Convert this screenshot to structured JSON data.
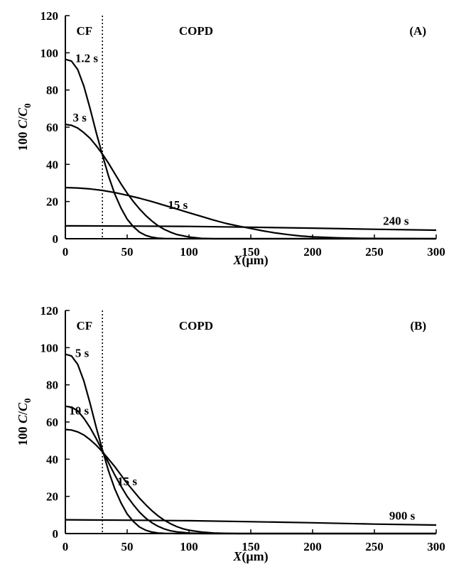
{
  "chart_data": [
    {
      "type": "line",
      "panel_label": "(A)",
      "xlabel_var": "X",
      "xlabel_unit": "(μm)",
      "ylabel_prefix": "100 ",
      "ylabel_c": "C",
      "ylabel_slash": "/",
      "ylabel_c0": "C",
      "ylabel_sub": "0",
      "xlim": [
        0,
        300
      ],
      "ylim": [
        0,
        120
      ],
      "xticks": [
        0,
        50,
        100,
        150,
        200,
        250,
        300
      ],
      "yticks": [
        0,
        20,
        40,
        60,
        80,
        100,
        120
      ],
      "grid": false,
      "boundary_x": 30,
      "region_labels": [
        {
          "text": "CF",
          "x": 2,
          "y": 112
        },
        {
          "text": "COPD",
          "x": 85,
          "y": 112
        }
      ],
      "series": [
        {
          "name": "1.2 s",
          "label_at": {
            "x": 8,
            "y": 95
          },
          "points": [
            [
              0,
              96.5
            ],
            [
              5,
              95.5
            ],
            [
              10,
              91
            ],
            [
              15,
              82
            ],
            [
              20,
              70
            ],
            [
              25,
              57
            ],
            [
              30,
              45
            ],
            [
              35,
              33.5
            ],
            [
              40,
              24
            ],
            [
              45,
              16.5
            ],
            [
              50,
              10.5
            ],
            [
              55,
              6.5
            ],
            [
              60,
              3.5
            ],
            [
              65,
              1.8
            ],
            [
              70,
              0.8
            ],
            [
              75,
              0.3
            ],
            [
              80,
              0.1
            ],
            [
              90,
              0
            ],
            [
              300,
              0
            ]
          ]
        },
        {
          "name": "3 s",
          "label_at": {
            "x": 6,
            "y": 63
          },
          "points": [
            [
              0,
              61.5
            ],
            [
              5,
              61
            ],
            [
              10,
              59.5
            ],
            [
              15,
              57
            ],
            [
              20,
              54
            ],
            [
              25,
              50
            ],
            [
              30,
              45.5
            ],
            [
              35,
              40.5
            ],
            [
              40,
              35
            ],
            [
              45,
              29.5
            ],
            [
              50,
              24.5
            ],
            [
              55,
              20
            ],
            [
              60,
              16
            ],
            [
              65,
              12.5
            ],
            [
              70,
              9.5
            ],
            [
              75,
              7
            ],
            [
              80,
              5
            ],
            [
              85,
              3.5
            ],
            [
              90,
              2.3
            ],
            [
              100,
              0.9
            ],
            [
              110,
              0.2
            ],
            [
              120,
              0
            ],
            [
              300,
              0
            ]
          ]
        },
        {
          "name": "15 s",
          "label_at": {
            "x": 83,
            "y": 16
          },
          "points": [
            [
              0,
              27.5
            ],
            [
              10,
              27.3
            ],
            [
              20,
              26.8
            ],
            [
              30,
              26
            ],
            [
              40,
              24.8
            ],
            [
              50,
              23.4
            ],
            [
              60,
              21.8
            ],
            [
              70,
              20
            ],
            [
              80,
              18
            ],
            [
              90,
              16
            ],
            [
              100,
              14
            ],
            [
              110,
              12
            ],
            [
              120,
              10
            ],
            [
              130,
              8.2
            ],
            [
              140,
              6.8
            ],
            [
              150,
              5.5
            ],
            [
              160,
              4.2
            ],
            [
              170,
              3.1
            ],
            [
              180,
              2.2
            ],
            [
              190,
              1.5
            ],
            [
              200,
              1
            ],
            [
              220,
              0.5
            ],
            [
              240,
              0.2
            ],
            [
              260,
              0.1
            ],
            [
              300,
              0
            ]
          ]
        },
        {
          "name": "240 s",
          "label_at": {
            "x": 257,
            "y": 7.5
          },
          "points": [
            [
              0,
              6.9
            ],
            [
              50,
              6.8
            ],
            [
              100,
              6.6
            ],
            [
              150,
              6.2
            ],
            [
              200,
              5.7
            ],
            [
              250,
              5.1
            ],
            [
              300,
              4.6
            ]
          ]
        }
      ]
    },
    {
      "type": "line",
      "panel_label": "(B)",
      "xlabel_var": "X",
      "xlabel_unit": "(μm)",
      "ylabel_prefix": "100 ",
      "ylabel_c": "C",
      "ylabel_slash": "/",
      "ylabel_c0": "C",
      "ylabel_sub": "0",
      "xlim": [
        0,
        300
      ],
      "ylim": [
        0,
        120
      ],
      "xticks": [
        0,
        50,
        100,
        150,
        200,
        250,
        300
      ],
      "yticks": [
        0,
        20,
        40,
        60,
        80,
        100,
        120
      ],
      "grid": false,
      "boundary_x": 30,
      "region_labels": [
        {
          "text": "CF",
          "x": 2,
          "y": 112
        },
        {
          "text": "COPD",
          "x": 85,
          "y": 112
        }
      ],
      "series": [
        {
          "name": "5 s",
          "label_at": {
            "x": 8,
            "y": 95
          },
          "points": [
            [
              0,
              96.5
            ],
            [
              5,
              95.5
            ],
            [
              10,
              91
            ],
            [
              15,
              82
            ],
            [
              20,
              70
            ],
            [
              25,
              57
            ],
            [
              30,
              45
            ],
            [
              35,
              33.5
            ],
            [
              40,
              24
            ],
            [
              45,
              16.5
            ],
            [
              50,
              10.5
            ],
            [
              55,
              6.5
            ],
            [
              60,
              3.5
            ],
            [
              65,
              1.8
            ],
            [
              70,
              0.8
            ],
            [
              75,
              0.3
            ],
            [
              80,
              0.1
            ],
            [
              90,
              0
            ],
            [
              300,
              0
            ]
          ]
        },
        {
          "name": "10 s",
          "label_at": {
            "x": 3,
            "y": 64
          },
          "points": [
            [
              0,
              68.5
            ],
            [
              5,
              68
            ],
            [
              10,
              66
            ],
            [
              15,
              62
            ],
            [
              20,
              57
            ],
            [
              25,
              51
            ],
            [
              30,
              44.5
            ],
            [
              35,
              38
            ],
            [
              40,
              31.5
            ],
            [
              45,
              25.5
            ],
            [
              50,
              20
            ],
            [
              55,
              15.5
            ],
            [
              60,
              11.5
            ],
            [
              65,
              8.3
            ],
            [
              70,
              5.8
            ],
            [
              75,
              3.9
            ],
            [
              80,
              2.5
            ],
            [
              85,
              1.5
            ],
            [
              90,
              0.9
            ],
            [
              100,
              0.3
            ],
            [
              110,
              0
            ],
            [
              300,
              0
            ]
          ]
        },
        {
          "name": "15 s",
          "label_at": {
            "x": 42,
            "y": 26
          },
          "points": [
            [
              0,
              56
            ],
            [
              5,
              55.7
            ],
            [
              10,
              54.7
            ],
            [
              15,
              53
            ],
            [
              20,
              50.5
            ],
            [
              25,
              47.5
            ],
            [
              30,
              44
            ],
            [
              35,
              40
            ],
            [
              40,
              36
            ],
            [
              45,
              31.5
            ],
            [
              50,
              27
            ],
            [
              55,
              23
            ],
            [
              60,
              19
            ],
            [
              65,
              15.5
            ],
            [
              70,
              12.3
            ],
            [
              75,
              9.5
            ],
            [
              80,
              7.2
            ],
            [
              85,
              5.3
            ],
            [
              90,
              3.8
            ],
            [
              95,
              2.6
            ],
            [
              100,
              1.8
            ],
            [
              110,
              0.8
            ],
            [
              120,
              0.3
            ],
            [
              130,
              0.1
            ],
            [
              140,
              0
            ],
            [
              300,
              0
            ]
          ]
        },
        {
          "name": "900 s",
          "label_at": {
            "x": 262,
            "y": 7.5
          },
          "points": [
            [
              0,
              7.4
            ],
            [
              50,
              7.2
            ],
            [
              100,
              6.9
            ],
            [
              150,
              6.4
            ],
            [
              200,
              5.8
            ],
            [
              250,
              5.1
            ],
            [
              300,
              4.6
            ]
          ]
        }
      ]
    }
  ]
}
